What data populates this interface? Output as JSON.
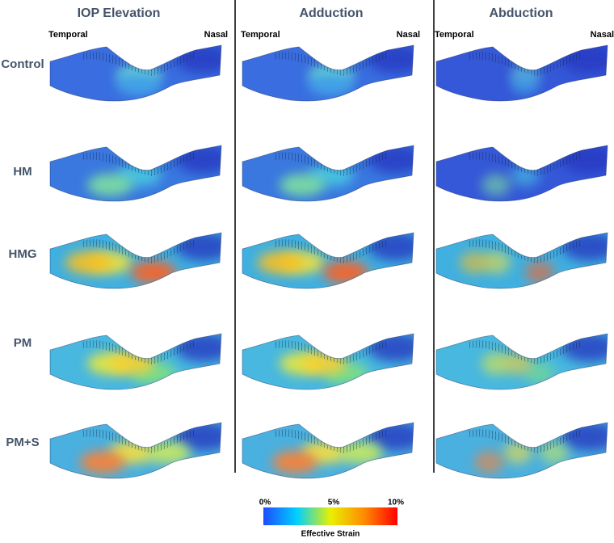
{
  "columns": [
    {
      "title": "IOP Elevation",
      "left": "Temporal",
      "right": "Nasal"
    },
    {
      "title": "Adduction",
      "left": "Temporal",
      "right": "Nasal"
    },
    {
      "title": "Abduction",
      "left": "Temporal",
      "right": "Nasal"
    }
  ],
  "rows": [
    "Control",
    "HM",
    "HMG",
    "PM",
    "PM+S"
  ],
  "colorbar": {
    "ticks": [
      "0%",
      "5%",
      "10%"
    ],
    "label": "Effective Strain"
  }
}
